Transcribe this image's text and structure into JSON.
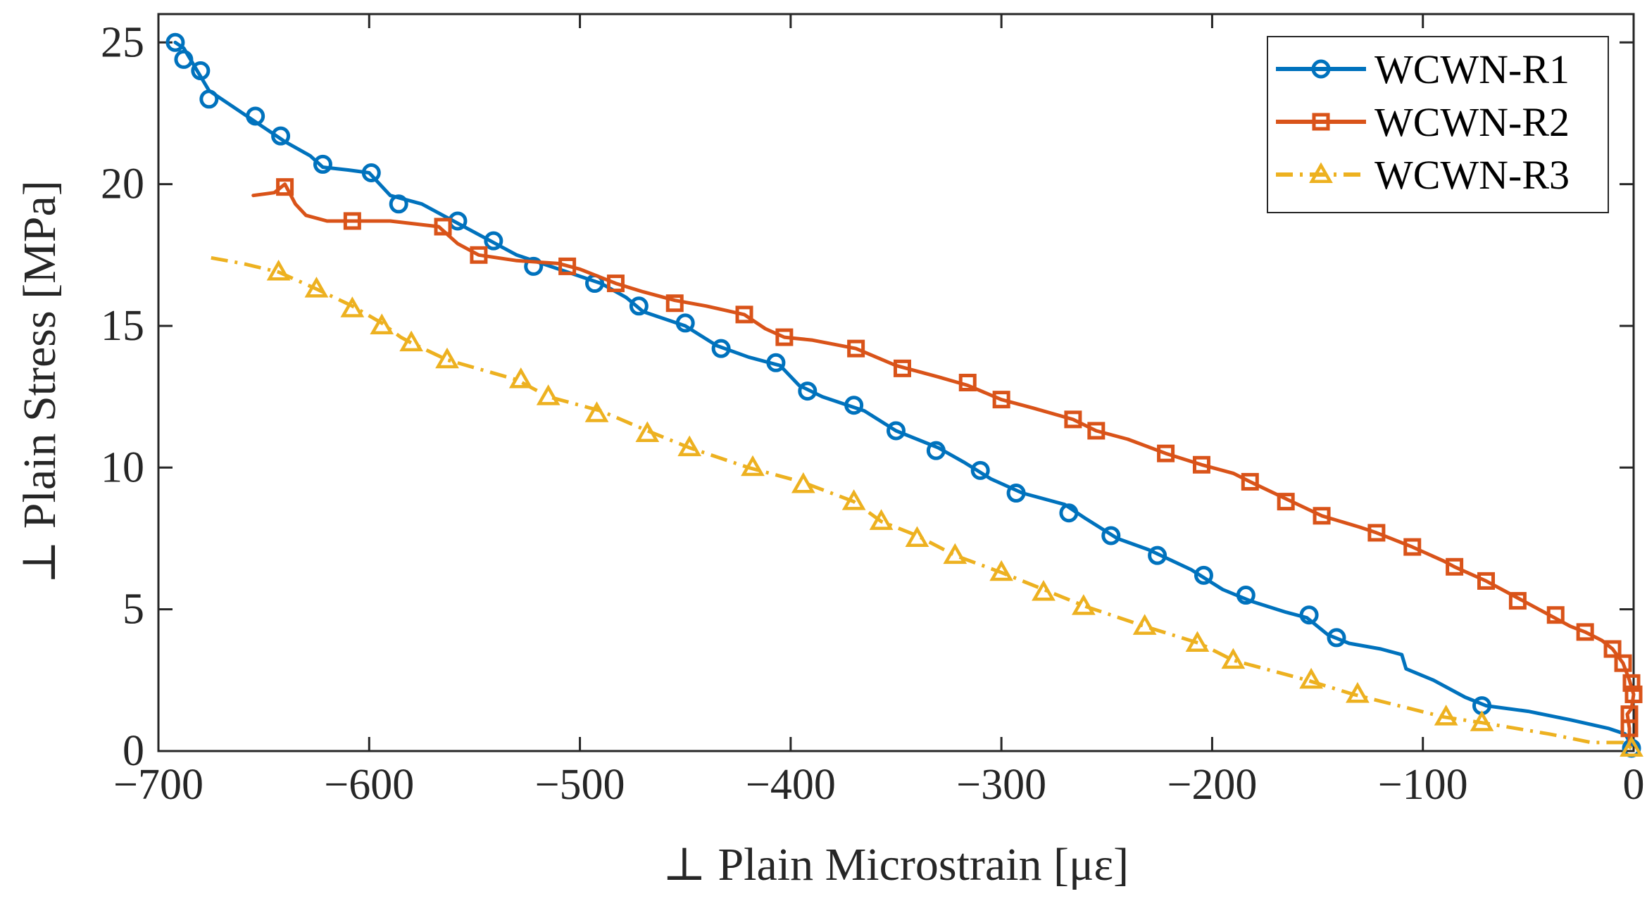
{
  "chart_data": {
    "type": "line",
    "title": "",
    "xlabel": "⊥ Plain Microstrain [με]",
    "ylabel": "⊥ Plain Stress [MPa]",
    "xlim": [
      -700,
      0
    ],
    "ylim": [
      0,
      26
    ],
    "xticks": [
      -700,
      -600,
      -500,
      -400,
      -300,
      -200,
      -100,
      0
    ],
    "xtick_labels": [
      "−700",
      "−600",
      "−500",
      "−400",
      "−300",
      "−200",
      "−100",
      "0"
    ],
    "yticks": [
      0,
      5,
      10,
      15,
      20,
      25
    ],
    "ytick_labels": [
      "0",
      "5",
      "10",
      "15",
      "20",
      "25"
    ],
    "grid": false,
    "legend_position": "top-right",
    "series": [
      {
        "name": "WCWN-R1",
        "color": "#0072BD",
        "marker": "circle",
        "line_style": "solid",
        "line": [
          [
            -692,
            25.0
          ],
          [
            -688,
            24.8
          ],
          [
            -676,
            23.3
          ],
          [
            -660,
            22.5
          ],
          [
            -640,
            21.5
          ],
          [
            -628,
            21.0
          ],
          [
            -622,
            20.6
          ],
          [
            -610,
            20.5
          ],
          [
            -600,
            20.4
          ],
          [
            -590,
            19.6
          ],
          [
            -575,
            19.3
          ],
          [
            -565,
            18.9
          ],
          [
            -550,
            18.3
          ],
          [
            -530,
            17.5
          ],
          [
            -510,
            17.0
          ],
          [
            -490,
            16.5
          ],
          [
            -478,
            16.0
          ],
          [
            -470,
            15.5
          ],
          [
            -450,
            15.0
          ],
          [
            -435,
            14.3
          ],
          [
            -420,
            13.9
          ],
          [
            -405,
            13.6
          ],
          [
            -396,
            12.9
          ],
          [
            -385,
            12.5
          ],
          [
            -365,
            12.0
          ],
          [
            -350,
            11.3
          ],
          [
            -330,
            10.7
          ],
          [
            -318,
            10.2
          ],
          [
            -305,
            9.6
          ],
          [
            -290,
            9.1
          ],
          [
            -270,
            8.7
          ],
          [
            -260,
            8.2
          ],
          [
            -245,
            7.5
          ],
          [
            -230,
            7.1
          ],
          [
            -210,
            6.4
          ],
          [
            -195,
            5.7
          ],
          [
            -182,
            5.3
          ],
          [
            -165,
            4.9
          ],
          [
            -155,
            4.7
          ],
          [
            -145,
            4.1
          ],
          [
            -135,
            3.8
          ],
          [
            -120,
            3.6
          ],
          [
            -110,
            3.4
          ],
          [
            -108,
            2.9
          ],
          [
            -95,
            2.5
          ],
          [
            -80,
            1.9
          ],
          [
            -70,
            1.6
          ],
          [
            -50,
            1.4
          ],
          [
            -30,
            1.1
          ],
          [
            -12,
            0.8
          ],
          [
            -4,
            0.6
          ],
          [
            -1,
            0.2
          ]
        ],
        "markers": [
          [
            -692,
            25.0
          ],
          [
            -688,
            24.4
          ],
          [
            -680,
            24.0
          ],
          [
            -676,
            23.0
          ],
          [
            -654,
            22.4
          ],
          [
            -642,
            21.7
          ],
          [
            -622,
            20.7
          ],
          [
            -599,
            20.4
          ],
          [
            -586,
            19.3
          ],
          [
            -558,
            18.7
          ],
          [
            -541,
            18.0
          ],
          [
            -522,
            17.1
          ],
          [
            -493,
            16.5
          ],
          [
            -472,
            15.7
          ],
          [
            -450,
            15.1
          ],
          [
            -433,
            14.2
          ],
          [
            -407,
            13.7
          ],
          [
            -392,
            12.7
          ],
          [
            -370,
            12.2
          ],
          [
            -350,
            11.3
          ],
          [
            -331,
            10.6
          ],
          [
            -310,
            9.9
          ],
          [
            -293,
            9.1
          ],
          [
            -268,
            8.4
          ],
          [
            -248,
            7.6
          ],
          [
            -226,
            6.9
          ],
          [
            -204,
            6.2
          ],
          [
            -184,
            5.5
          ],
          [
            -154,
            4.8
          ],
          [
            -141,
            4.0
          ],
          [
            -72,
            1.6
          ],
          [
            -1,
            0.1
          ]
        ]
      },
      {
        "name": "WCWN-R2",
        "color": "#D95319",
        "marker": "square",
        "line_style": "solid",
        "line": [
          [
            -655,
            19.6
          ],
          [
            -645,
            19.7
          ],
          [
            -640,
            20.0
          ],
          [
            -635,
            19.3
          ],
          [
            -630,
            18.9
          ],
          [
            -620,
            18.7
          ],
          [
            -608,
            18.7
          ],
          [
            -590,
            18.7
          ],
          [
            -567,
            18.5
          ],
          [
            -558,
            17.9
          ],
          [
            -548,
            17.5
          ],
          [
            -530,
            17.3
          ],
          [
            -510,
            17.2
          ],
          [
            -500,
            17.0
          ],
          [
            -483,
            16.5
          ],
          [
            -470,
            16.2
          ],
          [
            -455,
            15.9
          ],
          [
            -440,
            15.7
          ],
          [
            -422,
            15.4
          ],
          [
            -412,
            14.9
          ],
          [
            -403,
            14.6
          ],
          [
            -390,
            14.5
          ],
          [
            -369,
            14.2
          ],
          [
            -350,
            13.6
          ],
          [
            -330,
            13.2
          ],
          [
            -316,
            12.9
          ],
          [
            -300,
            12.4
          ],
          [
            -285,
            12.1
          ],
          [
            -266,
            11.7
          ],
          [
            -255,
            11.3
          ],
          [
            -240,
            11.0
          ],
          [
            -222,
            10.5
          ],
          [
            -205,
            10.1
          ],
          [
            -190,
            9.8
          ],
          [
            -182,
            9.5
          ],
          [
            -165,
            8.9
          ],
          [
            -148,
            8.3
          ],
          [
            -130,
            7.9
          ],
          [
            -122,
            7.7
          ],
          [
            -105,
            7.2
          ],
          [
            -90,
            6.7
          ],
          [
            -85,
            6.5
          ],
          [
            -70,
            6.0
          ],
          [
            -55,
            5.4
          ],
          [
            -40,
            4.8
          ],
          [
            -30,
            4.4
          ],
          [
            -23,
            4.2
          ],
          [
            -15,
            3.9
          ],
          [
            -10,
            3.6
          ],
          [
            -5,
            3.1
          ],
          [
            -2,
            2.5
          ],
          [
            0,
            2.0
          ],
          [
            -1,
            1.5
          ],
          [
            -3,
            1.3
          ],
          [
            -2,
            0.8
          ],
          [
            -2,
            0.2
          ]
        ],
        "markers": [
          [
            -640,
            19.9
          ],
          [
            -608,
            18.7
          ],
          [
            -565,
            18.5
          ],
          [
            -548,
            17.5
          ],
          [
            -506,
            17.1
          ],
          [
            -483,
            16.5
          ],
          [
            -455,
            15.8
          ],
          [
            -422,
            15.4
          ],
          [
            -403,
            14.6
          ],
          [
            -369,
            14.2
          ],
          [
            -347,
            13.5
          ],
          [
            -316,
            13.0
          ],
          [
            -300,
            12.4
          ],
          [
            -266,
            11.7
          ],
          [
            -255,
            11.3
          ],
          [
            -222,
            10.5
          ],
          [
            -205,
            10.1
          ],
          [
            -182,
            9.5
          ],
          [
            -165,
            8.8
          ],
          [
            -148,
            8.3
          ],
          [
            -122,
            7.7
          ],
          [
            -105,
            7.2
          ],
          [
            -85,
            6.5
          ],
          [
            -70,
            6.0
          ],
          [
            -55,
            5.3
          ],
          [
            -37,
            4.8
          ],
          [
            -23,
            4.2
          ],
          [
            -10,
            3.6
          ],
          [
            -5,
            3.1
          ],
          [
            -1,
            2.4
          ],
          [
            0,
            2.0
          ],
          [
            -2,
            1.3
          ],
          [
            -2,
            0.8
          ]
        ]
      },
      {
        "name": "WCWN-R3",
        "color": "#EDB120",
        "marker": "triangle",
        "line_style": "dash-dot",
        "line": [
          [
            -675,
            17.4
          ],
          [
            -660,
            17.2
          ],
          [
            -643,
            16.9
          ],
          [
            -625,
            16.3
          ],
          [
            -608,
            15.7
          ],
          [
            -594,
            15.1
          ],
          [
            -585,
            14.6
          ],
          [
            -580,
            14.4
          ],
          [
            -563,
            13.8
          ],
          [
            -530,
            13.1
          ],
          [
            -515,
            12.5
          ],
          [
            -490,
            12.0
          ],
          [
            -468,
            11.3
          ],
          [
            -448,
            10.7
          ],
          [
            -420,
            10.0
          ],
          [
            -395,
            9.5
          ],
          [
            -370,
            8.8
          ],
          [
            -357,
            8.1
          ],
          [
            -340,
            7.6
          ],
          [
            -322,
            6.9
          ],
          [
            -300,
            6.3
          ],
          [
            -280,
            5.7
          ],
          [
            -260,
            5.1
          ],
          [
            -232,
            4.4
          ],
          [
            -206,
            3.8
          ],
          [
            -190,
            3.2
          ],
          [
            -155,
            2.5
          ],
          [
            -133,
            2.0
          ],
          [
            -90,
            1.2
          ],
          [
            -72,
            1.0
          ],
          [
            -40,
            0.6
          ],
          [
            -20,
            0.3
          ],
          [
            -5,
            0.3
          ],
          [
            -1,
            0.1
          ]
        ],
        "markers": [
          [
            -643,
            16.9
          ],
          [
            -625,
            16.3
          ],
          [
            -608,
            15.6
          ],
          [
            -594,
            15.0
          ],
          [
            -580,
            14.4
          ],
          [
            -563,
            13.8
          ],
          [
            -528,
            13.1
          ],
          [
            -515,
            12.5
          ],
          [
            -492,
            11.9
          ],
          [
            -468,
            11.2
          ],
          [
            -448,
            10.7
          ],
          [
            -418,
            10.0
          ],
          [
            -394,
            9.4
          ],
          [
            -370,
            8.8
          ],
          [
            -357,
            8.1
          ],
          [
            -340,
            7.5
          ],
          [
            -322,
            6.9
          ],
          [
            -300,
            6.3
          ],
          [
            -280,
            5.6
          ],
          [
            -261,
            5.1
          ],
          [
            -232,
            4.4
          ],
          [
            -207,
            3.8
          ],
          [
            -190,
            3.2
          ],
          [
            -153,
            2.5
          ],
          [
            -131,
            2.0
          ],
          [
            -89,
            1.2
          ],
          [
            -72,
            1.0
          ],
          [
            -1,
            0.1
          ]
        ]
      }
    ]
  }
}
